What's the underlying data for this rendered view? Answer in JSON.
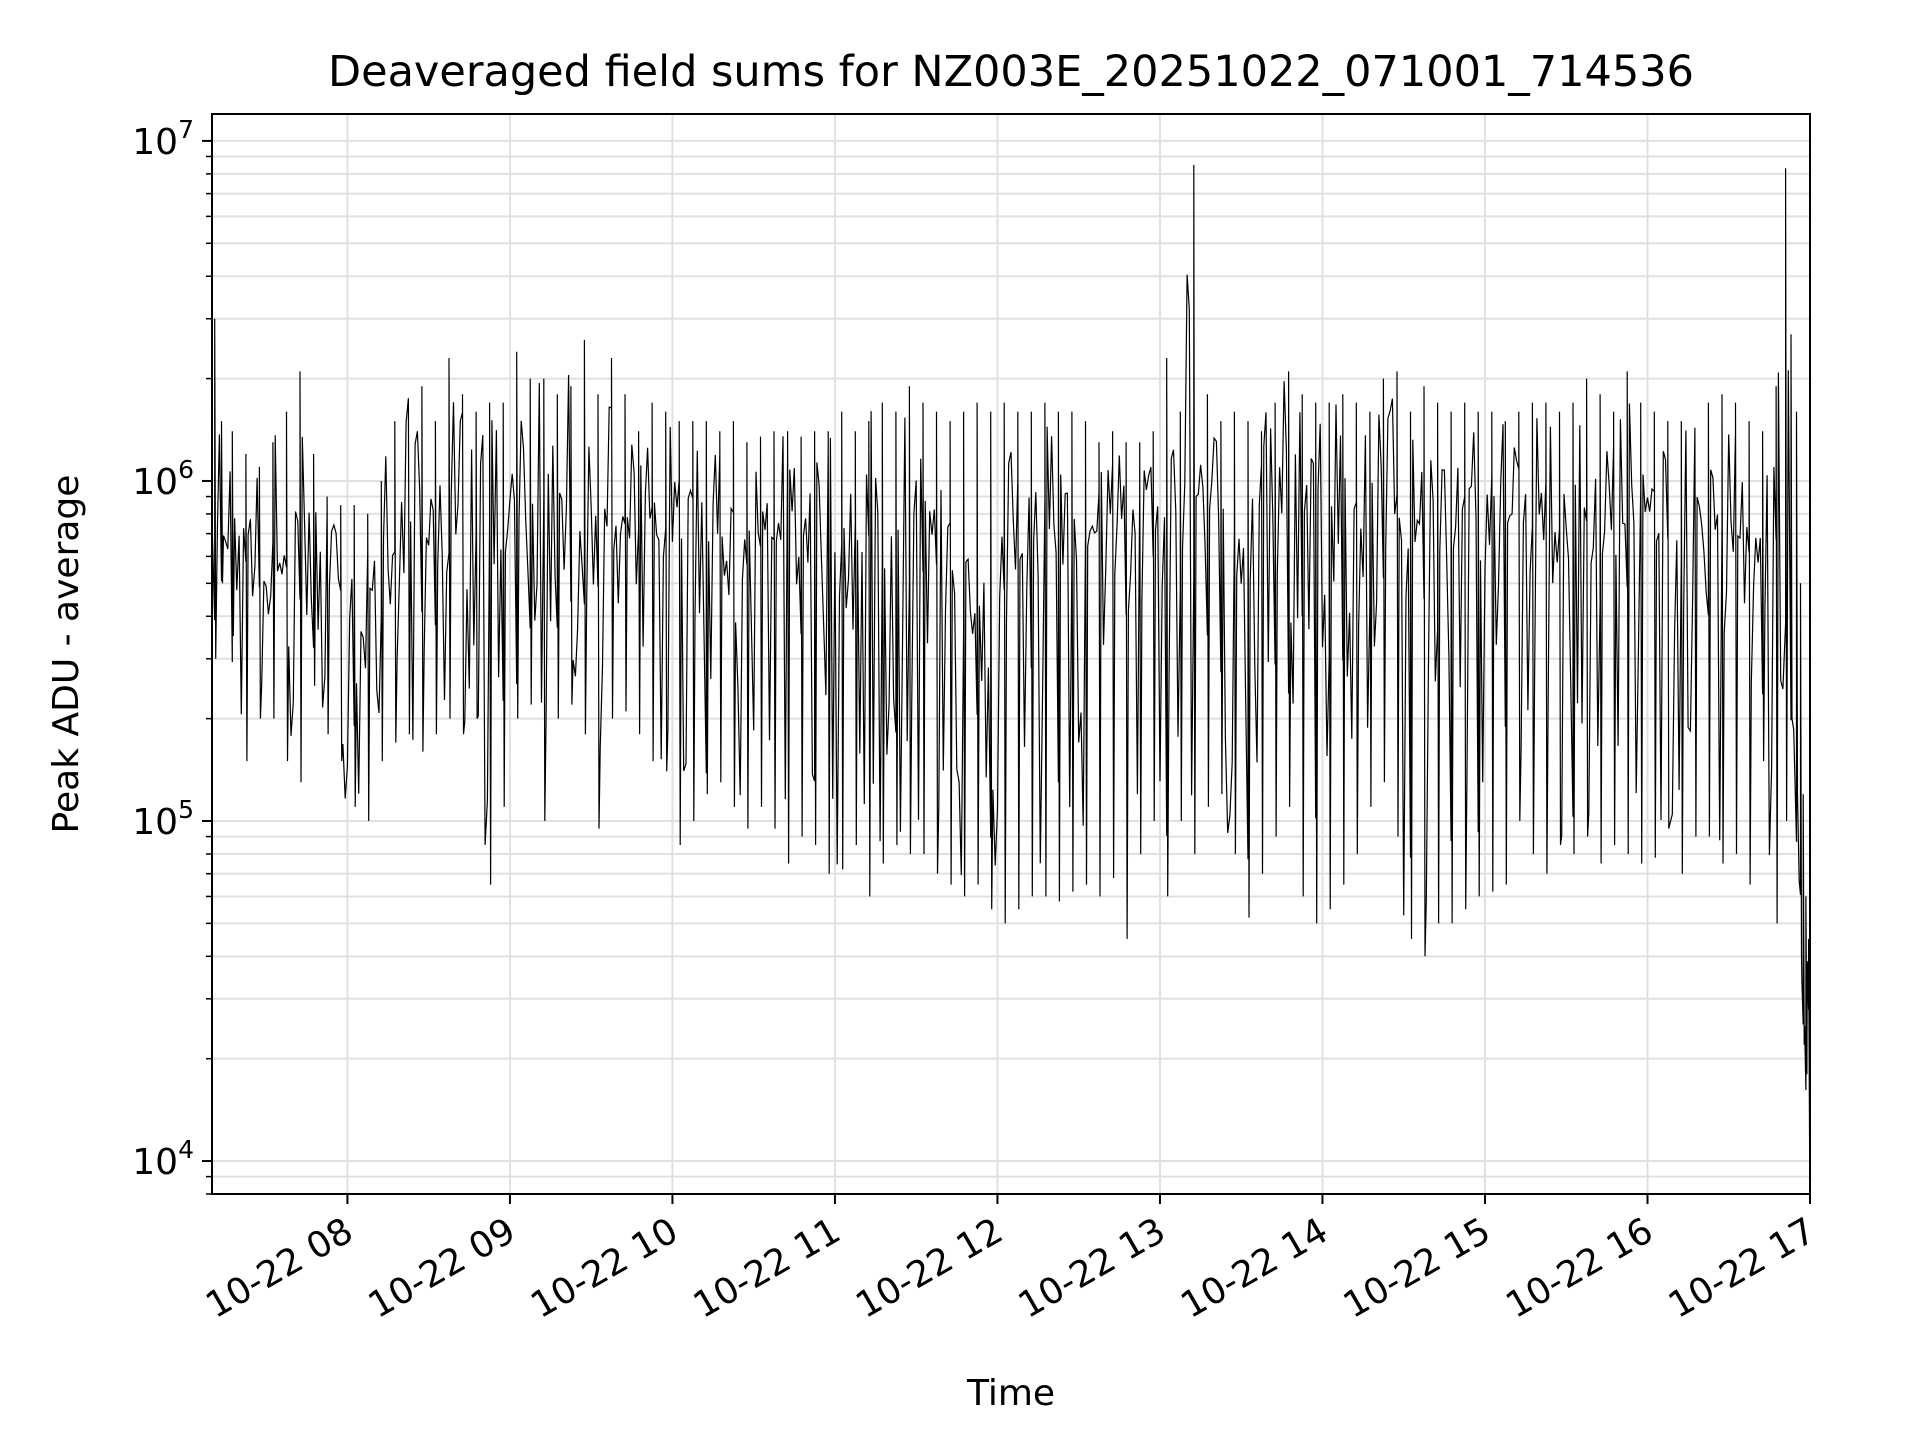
{
  "chart_data": {
    "type": "line",
    "title": "Deaveraged field sums for NZ003E_20251022_071001_714536",
    "xlabel": "Time",
    "ylabel": "Peak ADU - average",
    "y_scale": "log",
    "ylim": [
      8000,
      12000000
    ],
    "xlim": [
      "2025-10-22 07:10",
      "2025-10-22 17:00"
    ],
    "x_ticks": [
      {
        "t": "2025-10-22 08:00",
        "label": "10-22 08"
      },
      {
        "t": "2025-10-22 09:00",
        "label": "10-22 09"
      },
      {
        "t": "2025-10-22 10:00",
        "label": "10-22 10"
      },
      {
        "t": "2025-10-22 11:00",
        "label": "10-22 11"
      },
      {
        "t": "2025-10-22 12:00",
        "label": "10-22 12"
      },
      {
        "t": "2025-10-22 13:00",
        "label": "10-22 13"
      },
      {
        "t": "2025-10-22 14:00",
        "label": "10-22 14"
      },
      {
        "t": "2025-10-22 15:00",
        "label": "10-22 15"
      },
      {
        "t": "2025-10-22 16:00",
        "label": "10-22 16"
      },
      {
        "t": "2025-10-22 17:00",
        "label": "10-22 17"
      }
    ],
    "y_ticks": [
      {
        "value": 10000,
        "base": "10",
        "exp": "4"
      },
      {
        "value": 100000,
        "base": "10",
        "exp": "5"
      },
      {
        "value": 1000000,
        "base": "10",
        "exp": "6"
      },
      {
        "value": 10000000,
        "base": "10",
        "exp": "7"
      }
    ],
    "grid": true,
    "line_color": "#000000",
    "grid_color": "#e0e0e0",
    "legend": "none",
    "series": [
      {
        "x": [
          "2025-10-22 07:10",
          "2025-10-22 07:12",
          "2025-10-22 07:15",
          "2025-10-22 07:20",
          "2025-10-22 07:25",
          "2025-10-22 07:30",
          "2025-10-22 07:35",
          "2025-10-22 07:40",
          "2025-10-22 07:45",
          "2025-10-22 07:50",
          "2025-10-22 07:55",
          "2025-10-22 08:00",
          "2025-10-22 08:05",
          "2025-10-22 08:10",
          "2025-10-22 08:15",
          "2025-10-22 08:20",
          "2025-10-22 08:25",
          "2025-10-22 08:30",
          "2025-10-22 08:35",
          "2025-10-22 08:40",
          "2025-10-22 08:45",
          "2025-10-22 08:50",
          "2025-10-22 08:55",
          "2025-10-22 09:00",
          "2025-10-22 09:05",
          "2025-10-22 09:10",
          "2025-10-22 09:15",
          "2025-10-22 09:20",
          "2025-10-22 09:25",
          "2025-10-22 09:30",
          "2025-10-22 09:35",
          "2025-10-22 09:40",
          "2025-10-22 09:45",
          "2025-10-22 09:50",
          "2025-10-22 09:55",
          "2025-10-22 10:00",
          "2025-10-22 10:05",
          "2025-10-22 10:10",
          "2025-10-22 10:15",
          "2025-10-22 10:20",
          "2025-10-22 10:25",
          "2025-10-22 10:30",
          "2025-10-22 10:35",
          "2025-10-22 10:40",
          "2025-10-22 10:45",
          "2025-10-22 10:50",
          "2025-10-22 10:55",
          "2025-10-22 11:00",
          "2025-10-22 11:05",
          "2025-10-22 11:10",
          "2025-10-22 11:15",
          "2025-10-22 11:20",
          "2025-10-22 11:25",
          "2025-10-22 11:30",
          "2025-10-22 11:35",
          "2025-10-22 11:40",
          "2025-10-22 11:45",
          "2025-10-22 11:50",
          "2025-10-22 11:55",
          "2025-10-22 12:00",
          "2025-10-22 12:05",
          "2025-10-22 12:10",
          "2025-10-22 12:15",
          "2025-10-22 12:20",
          "2025-10-22 12:25",
          "2025-10-22 12:30",
          "2025-10-22 12:35",
          "2025-10-22 12:40",
          "2025-10-22 12:45",
          "2025-10-22 12:50",
          "2025-10-22 12:55",
          "2025-10-22 13:00",
          "2025-10-22 13:05",
          "2025-10-22 13:10",
          "2025-10-22 13:15",
          "2025-10-22 13:20",
          "2025-10-22 13:25",
          "2025-10-22 13:30",
          "2025-10-22 13:35",
          "2025-10-22 13:40",
          "2025-10-22 13:45",
          "2025-10-22 13:50",
          "2025-10-22 13:55",
          "2025-10-22 14:00",
          "2025-10-22 14:05",
          "2025-10-22 14:10",
          "2025-10-22 14:15",
          "2025-10-22 14:20",
          "2025-10-22 14:25",
          "2025-10-22 14:30",
          "2025-10-22 14:35",
          "2025-10-22 14:40",
          "2025-10-22 14:45",
          "2025-10-22 14:50",
          "2025-10-22 14:55",
          "2025-10-22 15:00",
          "2025-10-22 15:05",
          "2025-10-22 15:10",
          "2025-10-22 15:15",
          "2025-10-22 15:20",
          "2025-10-22 15:25",
          "2025-10-22 15:30",
          "2025-10-22 15:35",
          "2025-10-22 15:40",
          "2025-10-22 15:45",
          "2025-10-22 15:50",
          "2025-10-22 15:55",
          "2025-10-22 16:00",
          "2025-10-22 16:05",
          "2025-10-22 16:10",
          "2025-10-22 16:15",
          "2025-10-22 16:20",
          "2025-10-22 16:25",
          "2025-10-22 16:30",
          "2025-10-22 16:35",
          "2025-10-22 16:40",
          "2025-10-22 16:45",
          "2025-10-22 16:50",
          "2025-10-22 16:52",
          "2025-10-22 16:54",
          "2025-10-22 16:56",
          "2025-10-22 16:57",
          "2025-10-22 16:58",
          "2025-10-22 16:59",
          "2025-10-22 17:00"
        ],
        "y": [
          900000,
          1100000,
          700000,
          600000,
          650000,
          500000,
          550000,
          450000,
          600000,
          480000,
          450000,
          400000,
          380000,
          420000,
          550000,
          650000,
          700000,
          650000,
          750000,
          700000,
          700000,
          750000,
          720000,
          700000,
          800000,
          850000,
          820000,
          850000,
          750000,
          800000,
          750000,
          720000,
          700000,
          700000,
          690000,
          650000,
          700000,
          720000,
          700000,
          680000,
          700000,
          720000,
          700000,
          650000,
          680000,
          700000,
          650000,
          620000,
          620000,
          600000,
          580000,
          600000,
          580000,
          550000,
          560000,
          600000,
          580000,
          560000,
          500000,
          450000,
          500000,
          550000,
          600000,
          650000,
          600000,
          700000,
          700000,
          720000,
          750000,
          700000,
          700000,
          720000,
          800000,
          900000,
          850000,
          800000,
          750000,
          700000,
          800000,
          850000,
          800000,
          800000,
          850000,
          900000,
          800000,
          750000,
          720000,
          650000,
          600000,
          650000,
          700000,
          600000,
          600000,
          700000,
          800000,
          850000,
          800000,
          780000,
          750000,
          720000,
          700000,
          750000,
          800000,
          720000,
          700000,
          750000,
          750000,
          780000,
          700000,
          650000,
          600000,
          650000,
          700000,
          720000,
          700000,
          680000,
          700000,
          650000,
          500000,
          200000,
          80000,
          35000,
          25000,
          22000,
          30000
        ],
        "y_max": [
          3000000,
          1500000,
          1400000,
          1200000,
          1100000,
          1300000,
          1600000,
          2100000,
          1200000,
          900000,
          850000,
          850000,
          800000,
          1000000,
          1500000,
          1700000,
          1900000,
          1500000,
          2300000,
          1800000,
          1600000,
          1700000,
          1700000,
          2400000,
          2000000,
          2000000,
          1800000,
          1900000,
          2600000,
          1800000,
          2300000,
          1800000,
          1400000,
          1700000,
          1600000,
          1500000,
          1500000,
          1500000,
          1400000,
          1500000,
          1300000,
          1350000,
          1400000,
          1400000,
          1350000,
          1400000,
          1400000,
          1600000,
          1400000,
          1500000,
          1700000,
          1600000,
          1900000,
          1700000,
          1600000,
          1500000,
          1600000,
          1700000,
          1600000,
          1700000,
          1600000,
          1600000,
          1700000,
          1600000,
          1600000,
          1500000,
          1300000,
          1400000,
          1300000,
          1300000,
          1400000,
          2300000,
          1600000,
          8500000,
          1800000,
          1500000,
          1600000,
          1500000,
          1400000,
          1700000,
          2100000,
          1800000,
          1700000,
          1700000,
          1800000,
          1700000,
          1600000,
          2000000,
          2100000,
          1600000,
          1900000,
          1700000,
          1600000,
          1700000,
          1600000,
          1600000,
          1500000,
          1600000,
          1700000,
          1700000,
          1600000,
          1700000,
          2000000,
          1800000,
          1600000,
          2100000,
          1700000,
          1600000,
          1500000,
          1500000,
          1400000,
          1700000,
          1800000,
          1700000,
          1500000,
          1400000,
          1900000,
          8300000,
          2700000,
          1600000,
          500000,
          120000,
          60000,
          45000,
          45000
        ],
        "y_min": [
          300000,
          500000,
          350000,
          150000,
          200000,
          200000,
          150000,
          130000,
          250000,
          180000,
          150000,
          110000,
          100000,
          150000,
          170000,
          180000,
          160000,
          180000,
          200000,
          180000,
          200000,
          65000,
          110000,
          200000,
          220000,
          100000,
          200000,
          220000,
          180000,
          95000,
          200000,
          210000,
          180000,
          150000,
          140000,
          85000,
          100000,
          120000,
          130000,
          110000,
          95000,
          110000,
          95000,
          75000,
          90000,
          85000,
          70000,
          72000,
          85000,
          60000,
          75000,
          85000,
          80000,
          80000,
          70000,
          65000,
          60000,
          65000,
          55000,
          50000,
          55000,
          60000,
          60000,
          58000,
          62000,
          65000,
          60000,
          68000,
          45000,
          80000,
          100000,
          60000,
          100000,
          80000,
          110000,
          120000,
          80000,
          52000,
          70000,
          90000,
          110000,
          60000,
          50000,
          55000,
          65000,
          80000,
          110000,
          130000,
          90000,
          45000,
          40000,
          50000,
          50000,
          55000,
          60000,
          62000,
          65000,
          100000,
          80000,
          70000,
          85000,
          80000,
          90000,
          75000,
          85000,
          80000,
          75000,
          78000,
          95000,
          70000,
          90000,
          90000,
          75000,
          80000,
          65000,
          150000,
          50000,
          100000,
          200000,
          120000,
          40000,
          22000,
          18000,
          11000,
          18000
        ]
      }
    ]
  }
}
